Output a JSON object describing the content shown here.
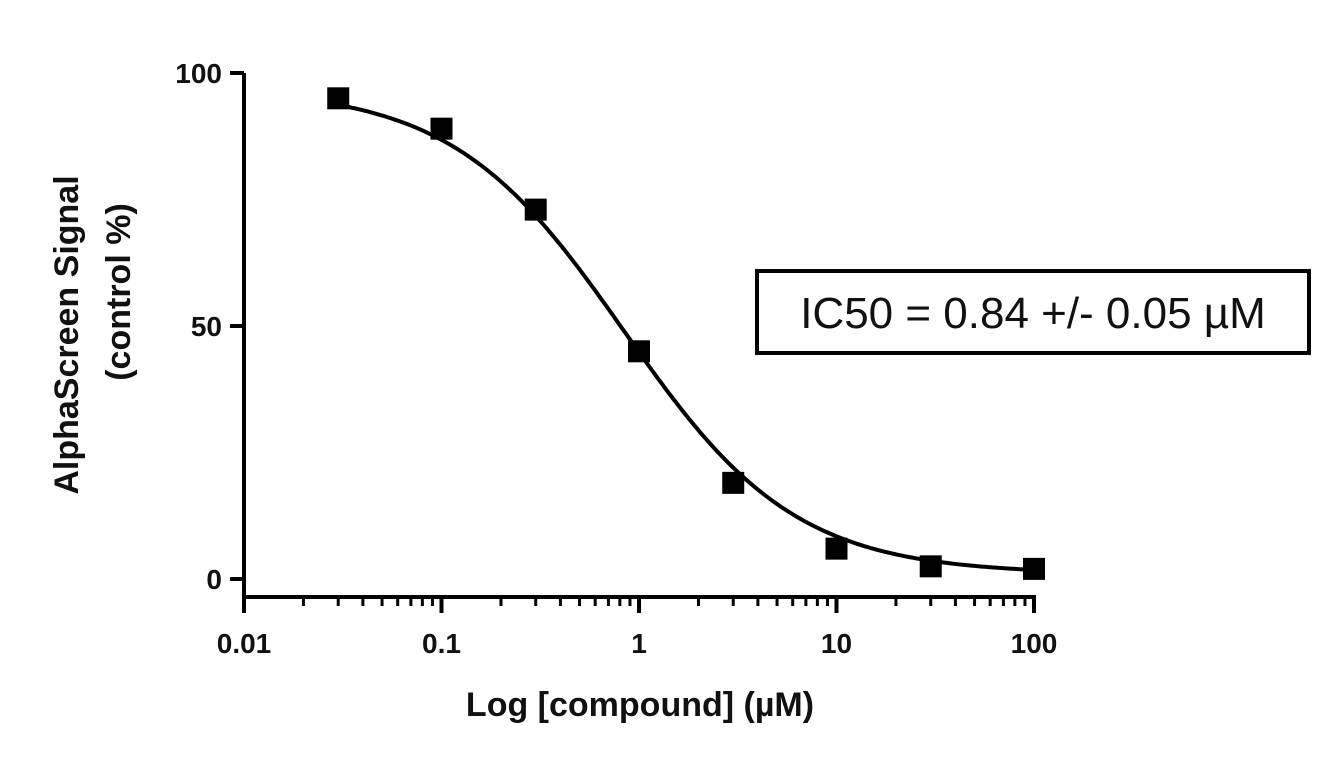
{
  "chart_data": {
    "type": "scatter",
    "title": "",
    "xlabel": "Log [compound] (µM)",
    "ylabel_line1": "AlphaScreen Signal",
    "ylabel_line2": "(control %)",
    "xscale": "log",
    "xlim": [
      0.01,
      100
    ],
    "ylim": [
      0,
      100
    ],
    "x_ticks": [
      0.01,
      0.1,
      1,
      10,
      100
    ],
    "x_tick_labels": [
      "0.01",
      "0.1",
      "1",
      "10",
      "100"
    ],
    "y_ticks": [
      0,
      50,
      100
    ],
    "y_tick_labels": [
      "0",
      "50",
      "100"
    ],
    "grid": false,
    "series": [
      {
        "marker": "square",
        "x": [
          0.03,
          0.1,
          0.3,
          1,
          3,
          10,
          30,
          100
        ],
        "y": [
          95,
          89,
          73,
          45,
          19,
          6,
          2.5,
          2
        ]
      }
    ],
    "fit_curve": {
      "model": "sigmoidal dose-response",
      "top": 97,
      "bottom": 1,
      "ic50": 0.84,
      "hill_slope": 1
    },
    "annotation": "IC50 = 0.84 +/- 0.05 µM"
  }
}
